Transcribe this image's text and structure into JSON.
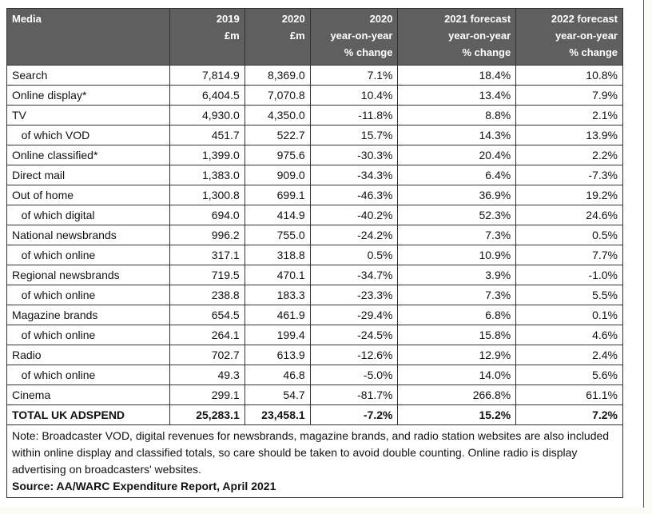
{
  "table": {
    "header": [
      "Media",
      "2019\n£m",
      "2020\n£m",
      "2020\nyear-on-year\n% change",
      "2021 forecast\nyear-on-year\n% change",
      "2022 forecast\nyear-on-year\n% change"
    ],
    "rows": [
      [
        "Search",
        "7,814.9",
        "8,369.0",
        "7.1%",
        "18.4%",
        "10.8%"
      ],
      [
        "Online display*",
        "6,404.5",
        "7,070.8",
        "10.4%",
        "13.4%",
        "7.9%"
      ],
      [
        "TV",
        "4,930.0",
        "4,350.0",
        "-11.8%",
        "8.8%",
        "2.1%"
      ],
      [
        "   of which VOD",
        "451.7",
        "522.7",
        "15.7%",
        "14.3%",
        "13.9%"
      ],
      [
        "Online classified*",
        "1,399.0",
        "975.6",
        "-30.3%",
        "20.4%",
        "2.2%"
      ],
      [
        "Direct mail",
        "1,383.0",
        "909.0",
        "-34.3%",
        "6.4%",
        "-7.3%"
      ],
      [
        "Out of home",
        "1,300.8",
        "699.1",
        "-46.3%",
        "36.9%",
        "19.2%"
      ],
      [
        "   of which digital",
        "694.0",
        "414.9",
        "-40.2%",
        "52.3%",
        "24.6%"
      ],
      [
        "National newsbrands",
        "996.2",
        "755.0",
        "-24.2%",
        "7.3%",
        "0.5%"
      ],
      [
        "   of which online",
        "317.1",
        "318.8",
        "0.5%",
        "10.9%",
        "7.7%"
      ],
      [
        "Regional newsbrands",
        "719.5",
        "470.1",
        "-34.7%",
        "3.9%",
        "-1.0%"
      ],
      [
        "   of which online",
        "238.8",
        "183.3",
        "-23.3%",
        "7.3%",
        "5.5%"
      ],
      [
        "Magazine brands",
        "654.5",
        "461.9",
        "-29.4%",
        "6.8%",
        "0.1%"
      ],
      [
        "   of which online",
        "264.1",
        "199.4",
        "-24.5%",
        "15.8%",
        "4.6%"
      ],
      [
        "Radio",
        "702.7",
        "613.9",
        "-12.6%",
        "12.9%",
        "2.4%"
      ],
      [
        "   of which online",
        "49.3",
        "46.8",
        "-5.0%",
        "14.0%",
        "5.6%"
      ],
      [
        "Cinema",
        "299.1",
        "54.7",
        "-81.7%",
        "266.8%",
        "61.1%"
      ]
    ],
    "total": [
      "TOTAL UK ADSPEND",
      "25,283.1",
      "23,458.1",
      "-7.2%",
      "15.2%",
      "7.2%"
    ],
    "note": "Note: Broadcaster VOD, digital revenues for newsbrands, magazine brands, and radio station websites are also included within online display and classified totals, so care should be taken to avoid double counting. Online radio is display advertising on broadcasters' websites.",
    "source": "Source: AA/WARC Expenditure Report, April 2021"
  }
}
